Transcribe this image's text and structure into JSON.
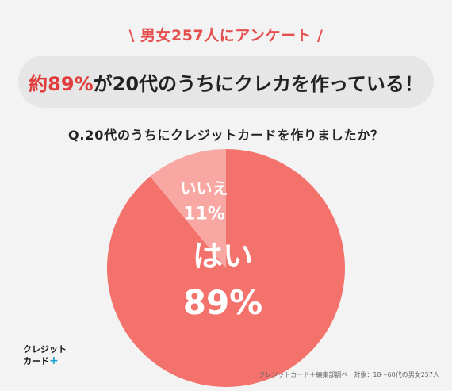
{
  "survey_label": "\\ 男女257人にアンケート /",
  "headline": {
    "accent": "約89%",
    "rest": "が20代のうちにクレカを作っている！"
  },
  "question": "Q.20代のうちにクレジットカードを作りましたか？",
  "chart_data": {
    "type": "pie",
    "categories": [
      "はい",
      "いいえ"
    ],
    "values": [
      89,
      11
    ],
    "labels": [
      "89%",
      "11%"
    ],
    "colors": [
      "#f4726c",
      "#f9a7a3"
    ],
    "title": "Q.20代のうちにクレジットカードを作りましたか？"
  },
  "logo": {
    "line1": "クレジット",
    "line2": "カード",
    "plus": "+"
  },
  "source": "クレジットカード＋編集部調べ　対象：18〜60代の男女257人"
}
